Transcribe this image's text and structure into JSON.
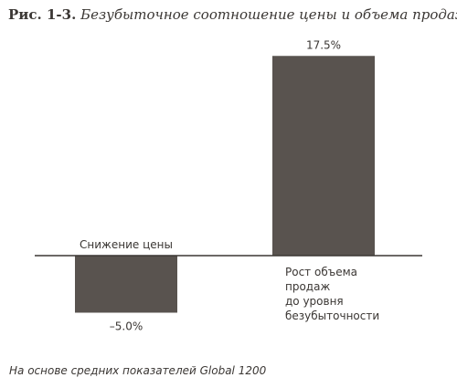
{
  "figure": {
    "number": "Рис. 1-3.",
    "title": "Безубыточное соотношение цены и объема продаж"
  },
  "chart_data": {
    "type": "bar",
    "categories": [
      [
        "Снижение цены"
      ],
      [
        "Рост объема",
        "продаж",
        "до уровня",
        "безубыточности"
      ]
    ],
    "values": [
      -5.0,
      17.5
    ],
    "value_labels": [
      "–5.0%",
      "17.5%"
    ],
    "unit": "%",
    "bar_color": "#59534f",
    "axis_color": "#3b3734",
    "ylim": [
      -7.0,
      19.0
    ],
    "grid": false,
    "legend": "none"
  },
  "source": "На основе средних показателей Global 1200"
}
